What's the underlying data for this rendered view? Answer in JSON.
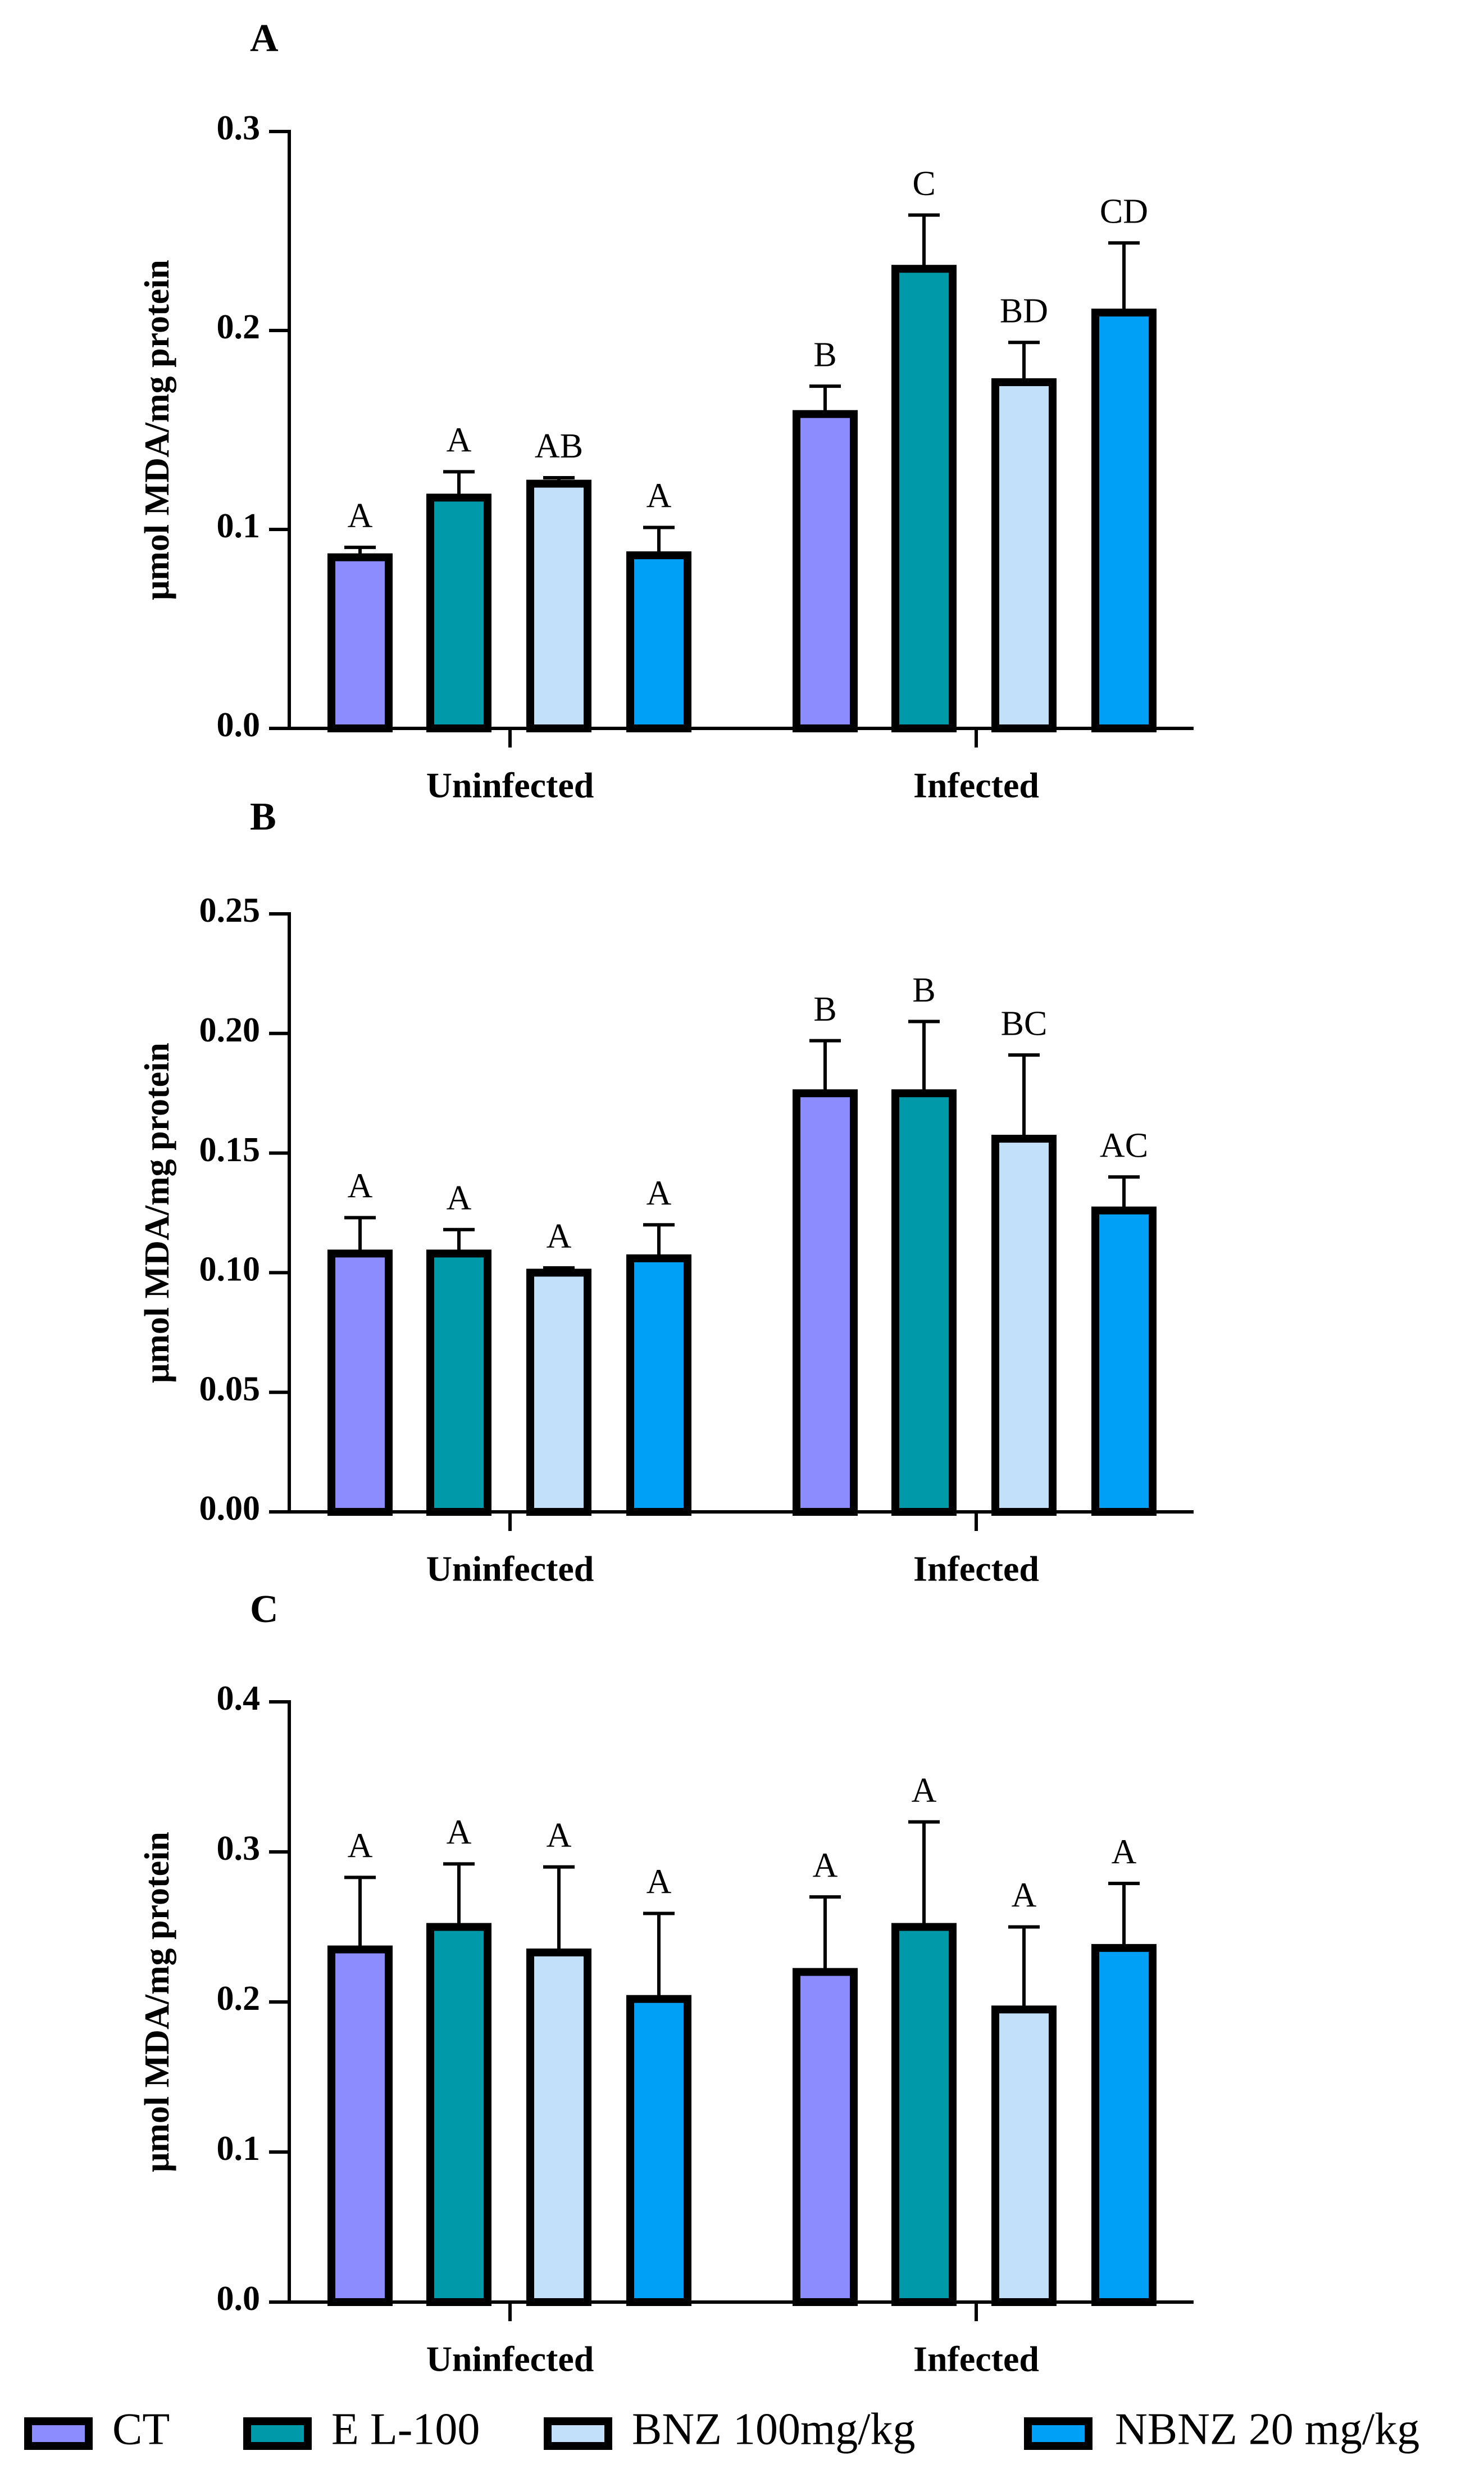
{
  "colors": {
    "CT": "#8c8cff",
    "E L-100": "#0099aa",
    "BNZ 100mg/kg": "#c2e0fa",
    "NBNZ 20 mg/kg": "#00a0f7"
  },
  "legend": [
    "CT",
    "E L-100",
    "BNZ 100mg/kg",
    "NBNZ 20 mg/kg"
  ],
  "chart_data": [
    {
      "type": "bar",
      "panel": "A",
      "ylabel": "μmol MDA/mg protein",
      "ylim": [
        0,
        0.3
      ],
      "yticks": [
        "0.0",
        "0.1",
        "0.2",
        "0.3"
      ],
      "ytick_values": [
        0,
        0.1,
        0.2,
        0.3
      ],
      "categories": [
        "Uninfected",
        "Infected"
      ],
      "series": [
        {
          "name": "CT",
          "values": [
            0.086,
            0.158
          ],
          "errors": [
            0.005,
            0.014
          ],
          "sig": [
            "A",
            "B"
          ]
        },
        {
          "name": "E L-100",
          "values": [
            0.116,
            0.231
          ],
          "errors": [
            0.013,
            0.027
          ],
          "sig": [
            "A",
            "C"
          ]
        },
        {
          "name": "BNZ 100mg/kg",
          "values": [
            0.123,
            0.174
          ],
          "errors": [
            0.003,
            0.02
          ],
          "sig": [
            "AB",
            "BD"
          ]
        },
        {
          "name": "NBNZ 20 mg/kg",
          "values": [
            0.087,
            0.209
          ],
          "errors": [
            0.014,
            0.035
          ],
          "sig": [
            "A",
            "CD"
          ]
        }
      ]
    },
    {
      "type": "bar",
      "panel": "B",
      "ylabel": "μmol MDA/mg protein",
      "ylim": [
        0,
        0.25
      ],
      "yticks": [
        "0.00",
        "0.05",
        "0.10",
        "0.15",
        "0.20",
        "0.25"
      ],
      "ytick_values": [
        0,
        0.05,
        0.1,
        0.15,
        0.2,
        0.25
      ],
      "categories": [
        "Uninfected",
        "Infected"
      ],
      "series": [
        {
          "name": "CT",
          "values": [
            0.108,
            0.175
          ],
          "errors": [
            0.015,
            0.022
          ],
          "sig": [
            "A",
            "B"
          ]
        },
        {
          "name": "E L-100",
          "values": [
            0.108,
            0.175
          ],
          "errors": [
            0.01,
            0.03
          ],
          "sig": [
            "A",
            "B"
          ]
        },
        {
          "name": "BNZ 100mg/kg",
          "values": [
            0.1,
            0.156
          ],
          "errors": [
            0.002,
            0.035
          ],
          "sig": [
            "A",
            "BC"
          ]
        },
        {
          "name": "NBNZ 20 mg/kg",
          "values": [
            0.106,
            0.126
          ],
          "errors": [
            0.014,
            0.014
          ],
          "sig": [
            "A",
            "AC"
          ]
        }
      ]
    },
    {
      "type": "bar",
      "panel": "C",
      "ylabel": "μmol MDA/mg protein",
      "ylim": [
        0,
        0.4
      ],
      "yticks": [
        "0.0",
        "0.1",
        "0.2",
        "0.3",
        "0.4"
      ],
      "ytick_values": [
        0,
        0.1,
        0.2,
        0.3,
        0.4
      ],
      "categories": [
        "Uninfected",
        "Infected"
      ],
      "series": [
        {
          "name": "CT",
          "values": [
            0.235,
            0.22
          ],
          "errors": [
            0.048,
            0.05
          ],
          "sig": [
            "A",
            "A"
          ]
        },
        {
          "name": "E L-100",
          "values": [
            0.25,
            0.25
          ],
          "errors": [
            0.042,
            0.07
          ],
          "sig": [
            "A",
            "A"
          ]
        },
        {
          "name": "BNZ 100mg/kg",
          "values": [
            0.233,
            0.195
          ],
          "errors": [
            0.057,
            0.055
          ],
          "sig": [
            "A",
            "A"
          ]
        },
        {
          "name": "NBNZ 20 mg/kg",
          "values": [
            0.202,
            0.236
          ],
          "errors": [
            0.057,
            0.043
          ],
          "sig": [
            "A",
            "A"
          ]
        }
      ]
    }
  ]
}
